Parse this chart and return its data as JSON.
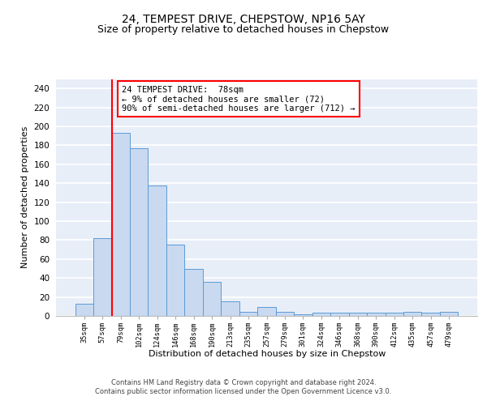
{
  "title1": "24, TEMPEST DRIVE, CHEPSTOW, NP16 5AY",
  "title2": "Size of property relative to detached houses in Chepstow",
  "xlabel": "Distribution of detached houses by size in Chepstow",
  "ylabel": "Number of detached properties",
  "hist_values": [
    13,
    82,
    193,
    177,
    138,
    75,
    50,
    36,
    15,
    4,
    9,
    4,
    2,
    3,
    3,
    3,
    3,
    3,
    4,
    3,
    4
  ],
  "bin_edges_labels": [
    "35sqm",
    "57sqm",
    "79sqm",
    "102sqm",
    "124sqm",
    "146sqm",
    "168sqm",
    "190sqm",
    "213sqm",
    "235sqm",
    "257sqm",
    "279sqm",
    "301sqm",
    "324sqm",
    "346sqm",
    "368sqm",
    "390sqm",
    "412sqm",
    "435sqm",
    "457sqm",
    "479sqm"
  ],
  "bar_color": "#c9d9f0",
  "bar_edge_color": "#5b9bd5",
  "annotation_line1": "24 TEMPEST DRIVE:  78sqm",
  "annotation_line2": "← 9% of detached houses are smaller (72)",
  "annotation_line3": "90% of semi-detached houses are larger (712) →",
  "annotation_box_color": "white",
  "annotation_box_edge": "red",
  "ylim": [
    0,
    250
  ],
  "yticks": [
    0,
    20,
    40,
    60,
    80,
    100,
    120,
    140,
    160,
    180,
    200,
    220,
    240
  ],
  "footer": "Contains HM Land Registry data © Crown copyright and database right 2024.\nContains public sector information licensed under the Open Government Licence v3.0.",
  "bg_color": "#e8eef8",
  "grid_color": "white",
  "title1_fontsize": 10,
  "title2_fontsize": 9,
  "red_line_color": "#ff0000"
}
